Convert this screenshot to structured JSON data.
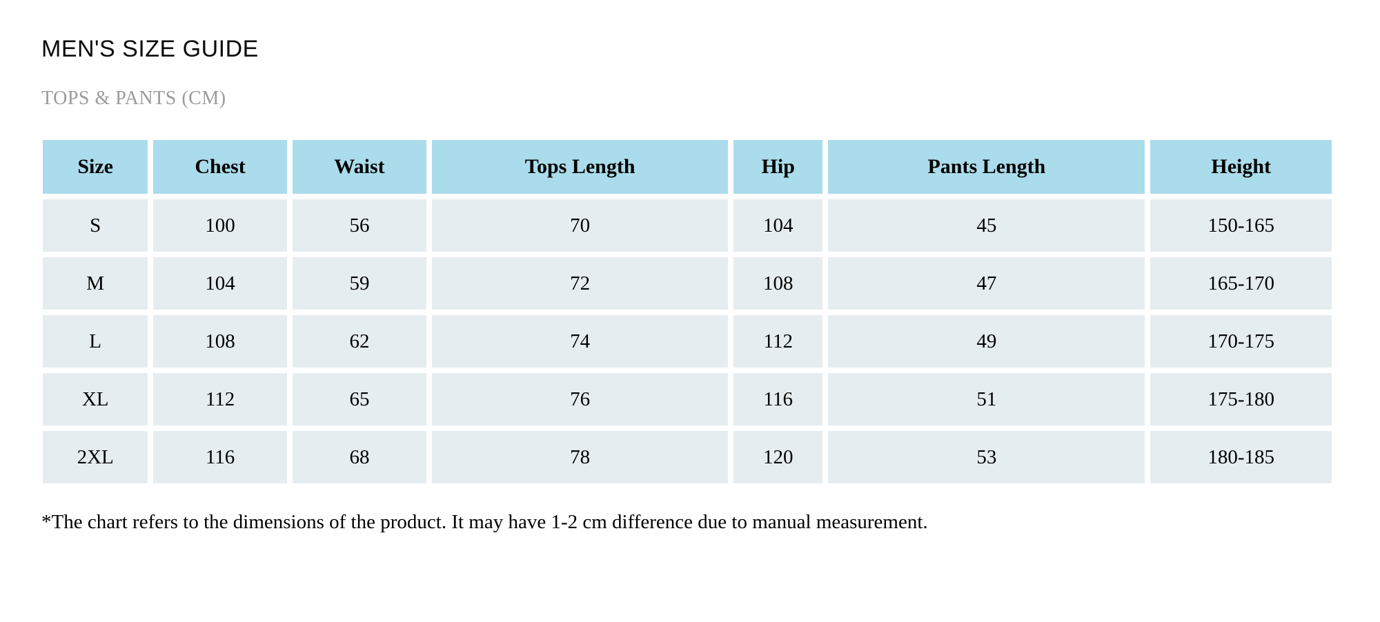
{
  "title": "MEN'S SIZE GUIDE",
  "subtitle": "TOPS & PANTS (CM)",
  "footnote": "*The chart refers to the dimensions of the product. It may have 1-2 cm difference due to manual measurement.",
  "colors": {
    "header_bg": "#abdceb",
    "row_bg": "#e6edf1",
    "subtitle_text": "#9b9b9b"
  },
  "chart_data": {
    "type": "table",
    "columns": [
      "Size",
      "Chest",
      "Waist",
      "Tops Length",
      "Hip",
      "Pants Length",
      "Height"
    ],
    "rows": [
      [
        "S",
        "100",
        "56",
        "70",
        "104",
        "45",
        "150-165"
      ],
      [
        "M",
        "104",
        "59",
        "72",
        "108",
        "47",
        "165-170"
      ],
      [
        "L",
        "108",
        "62",
        "74",
        "112",
        "49",
        "170-175"
      ],
      [
        "XL",
        "112",
        "65",
        "76",
        "116",
        "51",
        "175-180"
      ],
      [
        "2XL",
        "116",
        "68",
        "78",
        "120",
        "53",
        "180-185"
      ]
    ]
  }
}
